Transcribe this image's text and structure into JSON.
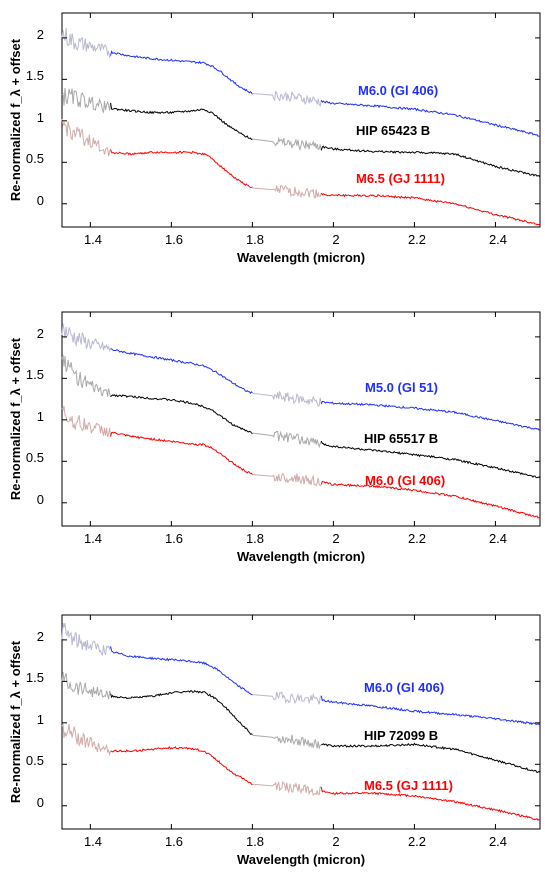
{
  "chart_data": [
    {
      "type": "line",
      "xlabel": "Wavelength (micron)",
      "ylabel": "Re-normalized f_λ + offset",
      "xlim": [
        1.33,
        2.51
      ],
      "ylim": [
        -0.28,
        2.3
      ],
      "xticks": [
        "1.4",
        "1.6",
        "1.8",
        "2",
        "2.2",
        "2.4"
      ],
      "yticks": [
        "0",
        "0.5",
        "1",
        "1.5",
        "2"
      ],
      "series": [
        {
          "name": "M6.0 (Gl 406)",
          "color": "#1f2fff",
          "noisy_color": "#b8b8d0",
          "x": [
            1.33,
            1.36,
            1.4,
            1.45,
            1.5,
            1.55,
            1.6,
            1.65,
            1.68,
            1.7,
            1.72,
            1.74,
            1.76,
            1.78,
            1.8,
            1.9,
            1.96,
            2.0,
            2.1,
            2.2,
            2.3,
            2.4,
            2.51
          ],
          "values": [
            2.05,
            1.95,
            1.9,
            1.83,
            1.78,
            1.75,
            1.73,
            1.71,
            1.7,
            1.66,
            1.6,
            1.52,
            1.44,
            1.38,
            1.33,
            1.29,
            1.24,
            1.21,
            1.18,
            1.14,
            1.07,
            0.95,
            0.82
          ]
        },
        {
          "name": "HIP 65423 B",
          "color": "#000000",
          "noisy_color": "#a8a8a8",
          "x": [
            1.33,
            1.36,
            1.4,
            1.45,
            1.5,
            1.55,
            1.6,
            1.65,
            1.68,
            1.7,
            1.72,
            1.74,
            1.76,
            1.78,
            1.8,
            1.9,
            1.96,
            2.0,
            2.1,
            2.2,
            2.3,
            2.4,
            2.51
          ],
          "values": [
            1.3,
            1.28,
            1.22,
            1.15,
            1.12,
            1.1,
            1.1,
            1.12,
            1.14,
            1.1,
            1.02,
            0.94,
            0.88,
            0.82,
            0.78,
            0.72,
            0.7,
            0.66,
            0.63,
            0.62,
            0.6,
            0.45,
            0.33
          ]
        },
        {
          "name": "M6.5 (GJ 1111)",
          "color": "#ff0000",
          "noisy_color": "#d2aaaa",
          "x": [
            1.33,
            1.36,
            1.4,
            1.45,
            1.5,
            1.55,
            1.6,
            1.65,
            1.68,
            1.7,
            1.72,
            1.74,
            1.76,
            1.78,
            1.8,
            1.9,
            1.96,
            2.0,
            2.1,
            2.2,
            2.3,
            2.4,
            2.51
          ],
          "values": [
            0.95,
            0.85,
            0.75,
            0.62,
            0.6,
            0.62,
            0.62,
            0.62,
            0.6,
            0.55,
            0.46,
            0.38,
            0.3,
            0.24,
            0.19,
            0.15,
            0.12,
            0.1,
            0.1,
            0.07,
            0.0,
            -0.13,
            -0.25
          ]
        }
      ]
    },
    {
      "type": "line",
      "xlabel": "Wavelength (micron)",
      "ylabel": "Re-normalized f_λ + offset",
      "xlim": [
        1.33,
        2.51
      ],
      "ylim": [
        -0.28,
        2.3
      ],
      "xticks": [
        "1.4",
        "1.6",
        "1.8",
        "2",
        "2.2",
        "2.4"
      ],
      "yticks": [
        "0",
        "0.5",
        "1",
        "1.5",
        "2"
      ],
      "series": [
        {
          "name": "M5.0 (Gl 51)",
          "color": "#1f2fff",
          "noisy_color": "#b8b8d0",
          "x": [
            1.33,
            1.36,
            1.4,
            1.45,
            1.5,
            1.55,
            1.6,
            1.65,
            1.68,
            1.7,
            1.72,
            1.74,
            1.76,
            1.78,
            1.8,
            1.9,
            1.96,
            2.0,
            2.1,
            2.2,
            2.3,
            2.4,
            2.51
          ],
          "values": [
            2.1,
            2.0,
            1.92,
            1.85,
            1.8,
            1.76,
            1.72,
            1.68,
            1.65,
            1.6,
            1.55,
            1.48,
            1.42,
            1.36,
            1.32,
            1.26,
            1.22,
            1.2,
            1.18,
            1.14,
            1.09,
            0.99,
            0.88
          ]
        },
        {
          "name": "HIP 65517 B",
          "color": "#000000",
          "noisy_color": "#a8a8a8",
          "x": [
            1.33,
            1.36,
            1.4,
            1.45,
            1.5,
            1.55,
            1.6,
            1.65,
            1.68,
            1.7,
            1.72,
            1.74,
            1.76,
            1.78,
            1.8,
            1.9,
            1.96,
            2.0,
            2.1,
            2.2,
            2.3,
            2.4,
            2.51
          ],
          "values": [
            1.75,
            1.55,
            1.4,
            1.3,
            1.28,
            1.26,
            1.24,
            1.2,
            1.16,
            1.12,
            1.05,
            0.98,
            0.92,
            0.88,
            0.84,
            0.78,
            0.72,
            0.68,
            0.63,
            0.58,
            0.52,
            0.42,
            0.3
          ]
        },
        {
          "name": "M6.0 (Gl 406)",
          "color": "#ff0000",
          "noisy_color": "#d2aaaa",
          "x": [
            1.33,
            1.36,
            1.4,
            1.45,
            1.5,
            1.55,
            1.6,
            1.65,
            1.68,
            1.7,
            1.72,
            1.74,
            1.76,
            1.78,
            1.8,
            1.9,
            1.96,
            2.0,
            2.1,
            2.2,
            2.3,
            2.4,
            2.51
          ],
          "values": [
            1.1,
            0.98,
            0.92,
            0.85,
            0.8,
            0.77,
            0.74,
            0.71,
            0.7,
            0.66,
            0.6,
            0.52,
            0.45,
            0.39,
            0.34,
            0.3,
            0.26,
            0.22,
            0.2,
            0.15,
            0.08,
            -0.04,
            -0.18
          ]
        }
      ]
    },
    {
      "type": "line",
      "xlabel": "Wavelength (micron)",
      "ylabel": "Re-normalized f_λ + offset",
      "xlim": [
        1.33,
        2.51
      ],
      "ylim": [
        -0.28,
        2.3
      ],
      "xticks": [
        "1.4",
        "1.6",
        "1.8",
        "2",
        "2.2",
        "2.4"
      ],
      "yticks": [
        "0",
        "0.5",
        "1",
        "1.5",
        "2"
      ],
      "series": [
        {
          "name": "M6.0 (Gl 406)",
          "color": "#1f2fff",
          "noisy_color": "#b8b8d0",
          "x": [
            1.33,
            1.36,
            1.4,
            1.45,
            1.5,
            1.55,
            1.6,
            1.65,
            1.68,
            1.7,
            1.72,
            1.74,
            1.76,
            1.78,
            1.8,
            1.9,
            1.96,
            2.0,
            2.1,
            2.2,
            2.3,
            2.4,
            2.51
          ],
          "values": [
            2.12,
            2.0,
            1.93,
            1.86,
            1.8,
            1.78,
            1.76,
            1.74,
            1.72,
            1.68,
            1.62,
            1.54,
            1.46,
            1.4,
            1.34,
            1.3,
            1.28,
            1.25,
            1.2,
            1.14,
            1.1,
            1.05,
            0.98
          ]
        },
        {
          "name": "HIP 72099 B",
          "color": "#000000",
          "noisy_color": "#a8a8a8",
          "x": [
            1.33,
            1.36,
            1.4,
            1.45,
            1.5,
            1.55,
            1.6,
            1.65,
            1.68,
            1.7,
            1.72,
            1.74,
            1.76,
            1.78,
            1.8,
            1.9,
            1.96,
            2.0,
            2.1,
            2.2,
            2.3,
            2.4,
            2.51
          ],
          "values": [
            1.55,
            1.45,
            1.4,
            1.32,
            1.3,
            1.32,
            1.36,
            1.38,
            1.37,
            1.32,
            1.25,
            1.15,
            1.05,
            0.95,
            0.85,
            0.8,
            0.75,
            0.72,
            0.72,
            0.74,
            0.68,
            0.55,
            0.4
          ]
        },
        {
          "name": "M6.5 (GJ 1111)",
          "color": "#ff0000",
          "noisy_color": "#d2aaaa",
          "x": [
            1.33,
            1.36,
            1.4,
            1.45,
            1.5,
            1.55,
            1.6,
            1.65,
            1.68,
            1.7,
            1.72,
            1.74,
            1.76,
            1.78,
            1.8,
            1.9,
            1.96,
            2.0,
            2.1,
            2.2,
            2.3,
            2.4,
            2.51
          ],
          "values": [
            0.95,
            0.85,
            0.75,
            0.66,
            0.66,
            0.68,
            0.7,
            0.69,
            0.66,
            0.6,
            0.52,
            0.44,
            0.37,
            0.32,
            0.26,
            0.22,
            0.18,
            0.15,
            0.15,
            0.12,
            0.05,
            -0.05,
            -0.17
          ]
        }
      ]
    }
  ]
}
